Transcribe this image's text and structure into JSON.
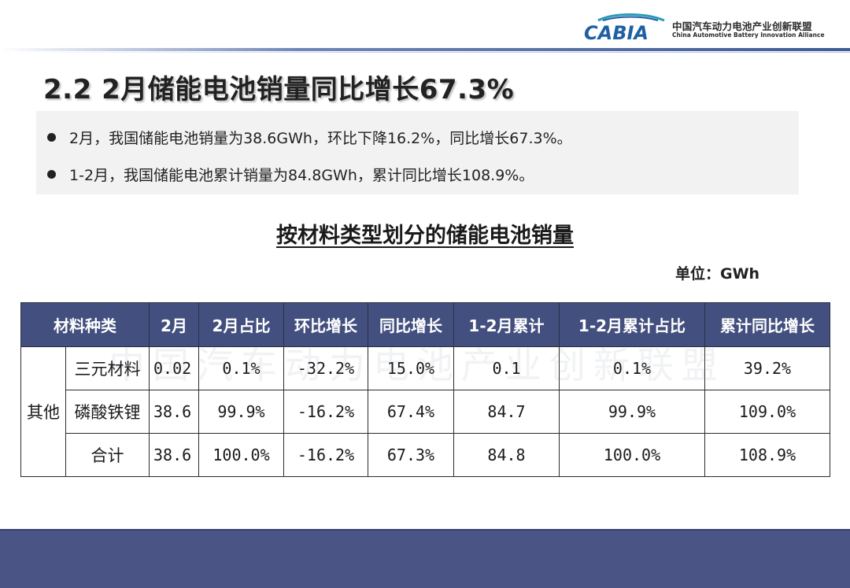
{
  "header": {
    "logo_text": "CABIA",
    "org_cn": "中国汽车动力电池产业创新联盟",
    "org_en": "China Automotive Battery Innovation Alliance"
  },
  "title": "2.2 2月储能电池销量同比增长67.3%",
  "bullets": [
    "2月，我国储能电池销量为38.6GWh，环比下降16.2%，同比增长67.3%。",
    "1-2月，我国储能电池累计销量为84.8GWh，累计同比增长108.9%。"
  ],
  "table_title": "按材料类型划分的储能电池销量",
  "unit": "单位：GWh",
  "watermark": "中国汽车动力电池产业创新联盟",
  "table": {
    "headers": [
      "材料种类",
      "2月",
      "2月占比",
      "环比增长",
      "同比增长",
      "1-2月累计",
      "1-2月累计占比",
      "累计同比增长"
    ],
    "group_label": "其他",
    "rows": [
      [
        "三元材料",
        "0.02",
        "0.1%",
        "-32.2%",
        "15.0%",
        "0.1",
        "0.1%",
        "39.2%"
      ],
      [
        "磷酸铁锂",
        "38.6",
        "99.9%",
        "-16.2%",
        "67.4%",
        "84.7",
        "99.9%",
        "109.0%"
      ],
      [
        "合计",
        "38.6",
        "100.0%",
        "-16.2%",
        "67.3%",
        "84.8",
        "100.0%",
        "108.9%"
      ]
    ]
  },
  "colors": {
    "header_bg": "#43507f",
    "footer_bg": "#4a5485",
    "summary_bg": "#f2f2f2",
    "logo_blue": "#1f5fa3",
    "logo_teal": "#2a9bb8"
  }
}
